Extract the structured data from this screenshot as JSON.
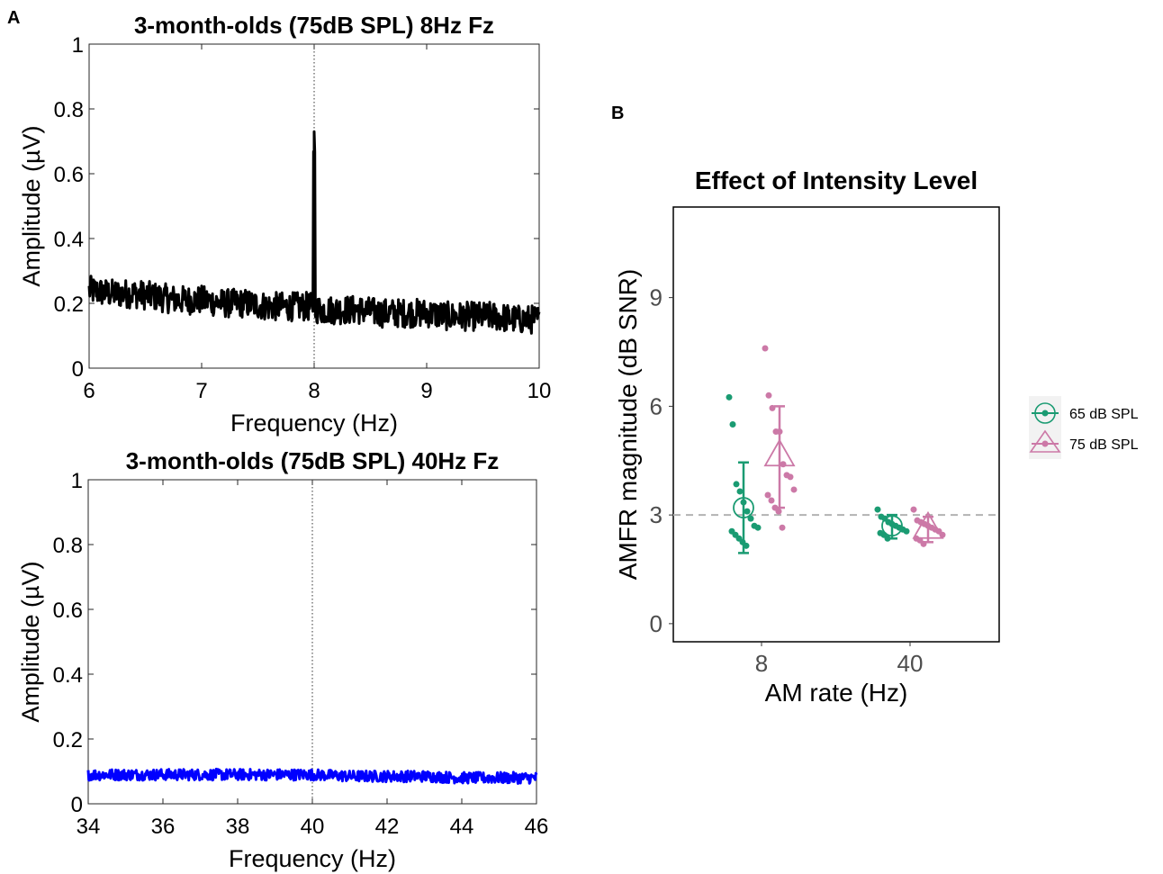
{
  "panel_labels": {
    "a": "A",
    "b": "B"
  },
  "chart_data": [
    {
      "type": "line",
      "title": "3-month-olds (75dB SPL) 8Hz Fz",
      "xlabel": "Frequency (Hz)",
      "ylabel": "Amplitude (µV)",
      "xlim": [
        6,
        10
      ],
      "ylim": [
        0,
        1
      ],
      "xticks": [
        "6",
        "7",
        "8",
        "9",
        "10"
      ],
      "yticks": [
        "0",
        "0.2",
        "0.4",
        "0.6",
        "0.8",
        "1"
      ],
      "color": "#000000",
      "marker_line_x": 8,
      "series": [
        {
          "x": [
            6.0,
            6.2,
            6.4,
            6.6,
            6.8,
            7.0,
            7.2,
            7.4,
            7.6,
            7.8,
            7.95,
            8.0,
            8.05,
            8.2,
            8.4,
            8.6,
            8.8,
            9.0,
            9.2,
            9.4,
            9.6,
            9.8,
            10.0
          ],
          "y": [
            0.24,
            0.23,
            0.23,
            0.22,
            0.21,
            0.21,
            0.2,
            0.2,
            0.19,
            0.19,
            0.19,
            0.73,
            0.18,
            0.18,
            0.18,
            0.17,
            0.17,
            0.17,
            0.16,
            0.16,
            0.16,
            0.15,
            0.15
          ]
        }
      ]
    },
    {
      "type": "line",
      "title": "3-month-olds (75dB SPL) 40Hz Fz",
      "xlabel": "Frequency (Hz)",
      "ylabel": "Amplitude (µV)",
      "xlim": [
        34,
        46
      ],
      "ylim": [
        0,
        1
      ],
      "xticks": [
        "34",
        "36",
        "38",
        "40",
        "42",
        "44",
        "46"
      ],
      "yticks": [
        "0",
        "0.2",
        "0.4",
        "0.6",
        "0.8",
        "1"
      ],
      "color": "#0000ff",
      "marker_line_x": 40,
      "series": [
        {
          "x": [
            34,
            35,
            36,
            37,
            38,
            39,
            40,
            41,
            42,
            43,
            44,
            45,
            46
          ],
          "y": [
            0.09,
            0.09,
            0.09,
            0.09,
            0.09,
            0.09,
            0.09,
            0.085,
            0.085,
            0.085,
            0.08,
            0.08,
            0.08
          ]
        }
      ]
    },
    {
      "type": "scatter",
      "title": "Effect of Intensity Level",
      "xlabel": "AM rate (Hz)",
      "ylabel": "AMFR magnitude (dB SNR)",
      "categories": [
        "8",
        "40"
      ],
      "ylim": [
        -0.5,
        11.5
      ],
      "yticks": [
        "0",
        "3",
        "6",
        "9"
      ],
      "reference_line_y": 3,
      "legend_position": "right",
      "series": [
        {
          "name": "65 dB SPL",
          "color": "#1a9b72",
          "marker": "circle",
          "groups": [
            {
              "category": "8",
              "mean": 3.2,
              "err_low": 1.95,
              "err_high": 4.45,
              "points": [
                6.25,
                5.5,
                3.85,
                3.65,
                3.35,
                3.1,
                2.9,
                2.7,
                2.65,
                2.55,
                2.45,
                2.35,
                2.25,
                2.15
              ]
            },
            {
              "category": "40",
              "mean": 2.7,
              "err_low": 2.35,
              "err_high": 3.0,
              "points": [
                3.15,
                2.95,
                2.9,
                2.8,
                2.75,
                2.7,
                2.65,
                2.6,
                2.55,
                2.5,
                2.45,
                2.35
              ]
            }
          ]
        },
        {
          "name": "75 dB SPL",
          "color": "#cc79a7",
          "marker": "triangle",
          "groups": [
            {
              "category": "8",
              "mean": 4.6,
              "err_low": 3.2,
              "err_high": 6.0,
              "points": [
                7.6,
                6.3,
                5.95,
                5.3,
                5.3,
                4.4,
                4.1,
                4.05,
                3.7,
                3.55,
                3.4,
                3.2,
                3.1,
                2.65
              ]
            },
            {
              "category": "40",
              "mean": 2.6,
              "err_low": 2.25,
              "err_high": 2.95,
              "points": [
                3.15,
                2.85,
                2.8,
                2.75,
                2.7,
                2.65,
                2.6,
                2.55,
                2.45,
                2.35,
                2.3,
                2.2
              ]
            }
          ]
        }
      ]
    }
  ]
}
